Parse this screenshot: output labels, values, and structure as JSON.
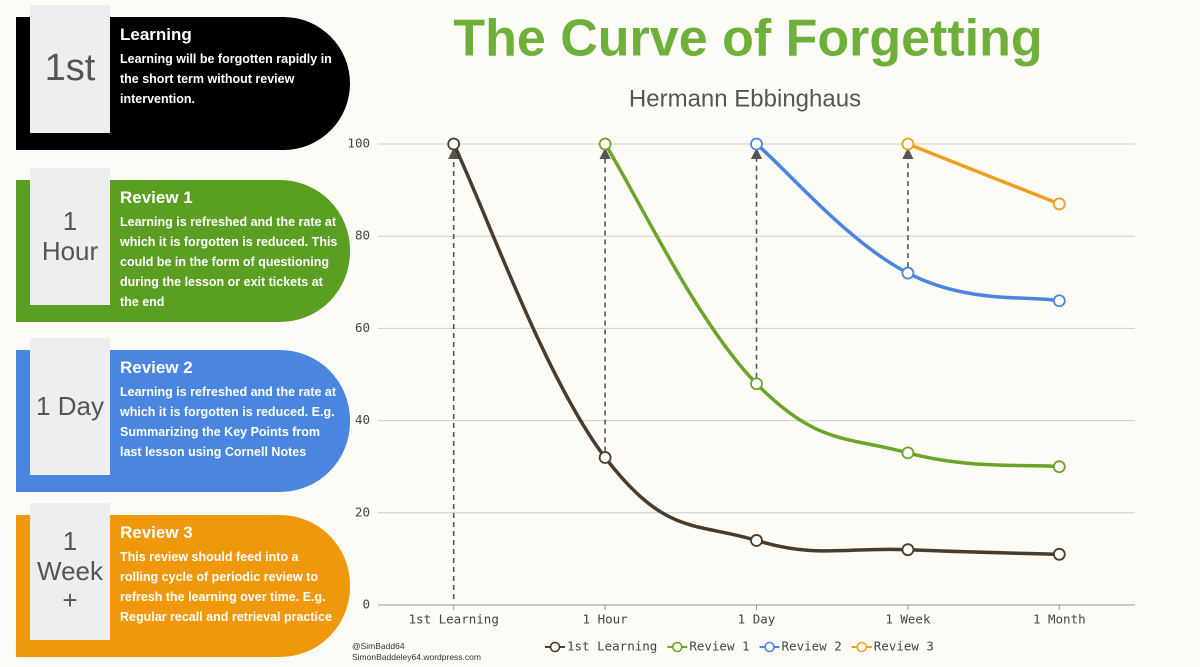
{
  "panels": [
    {
      "label": [
        "1st"
      ],
      "heading": "Learning",
      "text": "Learning will be forgotten rapidly in the short term without review intervention.",
      "color": "#000000"
    },
    {
      "label": [
        "1",
        "Hour"
      ],
      "heading": "Review 1",
      "text": "Learning is refreshed and the rate at which it is forgotten is reduced. This could be in the form of questioning during the lesson or exit tickets at the end",
      "color": "#5a9e22"
    },
    {
      "label": [
        "1 Day"
      ],
      "heading": "Review 2",
      "text": "Learning is refreshed and the rate at which it is forgotten is reduced.  E.g. Summarizing the Key Points from last lesson using Cornell Notes",
      "color": "#4a86e0"
    },
    {
      "label": [
        "1",
        "Week",
        "+"
      ],
      "heading": "Review 3",
      "text": "This review should feed into a rolling cycle of periodic review to refresh the learning over time.  E.g. Regular recall and retrieval practice",
      "color": "#f0980c"
    }
  ],
  "credits": [
    "@SimBadd64",
    "SimonBaddeley64.wordpress.com"
  ],
  "chart_data": {
    "type": "line",
    "title": "The Curve of Forgetting",
    "subtitle": "Hermann Ebbinghaus",
    "categories": [
      "1st Learning",
      "1 Hour",
      "1 Day",
      "1 Week",
      "1 Month"
    ],
    "series": [
      {
        "name": "1st Learning",
        "color": "#4a3b2a",
        "values": [
          100,
          32,
          14,
          12,
          11
        ]
      },
      {
        "name": "Review 1",
        "color": "#6aa52a",
        "values": [
          null,
          100,
          48,
          33,
          30
        ]
      },
      {
        "name": "Review 2",
        "color": "#4a86e0",
        "values": [
          null,
          null,
          100,
          72,
          66
        ]
      },
      {
        "name": "Review 3",
        "color": "#f0a020",
        "values": [
          null,
          null,
          null,
          100,
          87
        ]
      }
    ],
    "ylim": [
      0,
      100
    ],
    "yticks": [
      0,
      20,
      40,
      60,
      80,
      100
    ],
    "grid": true,
    "legend": "bottom"
  }
}
